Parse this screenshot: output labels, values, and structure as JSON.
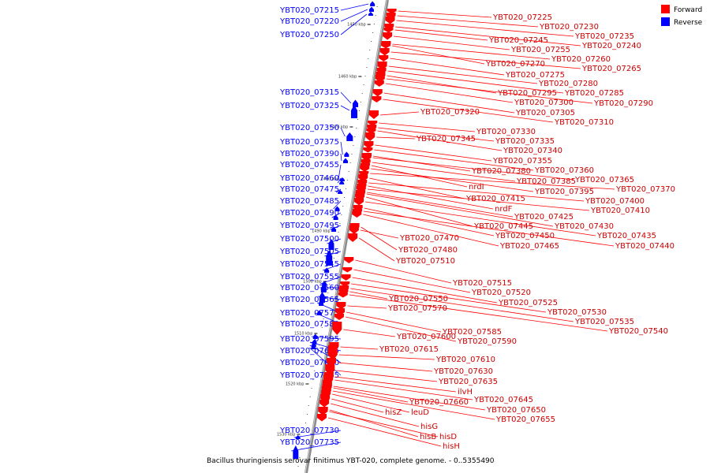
{
  "caption": "Bacillus thuringiensis serovar finitimus YBT-020, complete genome. - 0..5355490",
  "legend": {
    "items": [
      {
        "label": "Forward",
        "color": "#ff0000"
      },
      {
        "label": "Reverse",
        "color": "#0000ff"
      }
    ]
  },
  "scale_ticks": [
    {
      "label": "1450 kbp"
    },
    {
      "label": "1460 kbp"
    },
    {
      "label": "1470 kbp"
    },
    {
      "label": "1480 kbp"
    },
    {
      "label": "1490 kbp"
    },
    {
      "label": "1500 kbp"
    },
    {
      "label": "1510 kbp"
    },
    {
      "label": "1520 kbp"
    },
    {
      "label": "1530 kbp"
    }
  ],
  "reverse_genes": [
    "YBT020_07215",
    "YBT020_07220",
    "YBT020_07250",
    "YBT020_07315",
    "YBT020_07325",
    "YBT020_07350",
    "YBT020_07375",
    "YBT020_07390",
    "YBT020_07455",
    "YBT020_07460",
    "YBT020_07475",
    "YBT020_07485",
    "YBT020_07490",
    "YBT020_07495",
    "YBT020_07500",
    "YBT020_07505",
    "YBT020_07545",
    "YBT020_07555",
    "YBT020_07560",
    "YBT020_07565",
    "YBT020_07575",
    "YBT020_07580",
    "YBT020_07595",
    "YBT020_07605",
    "YBT020_07620",
    "YBT020_07625",
    "YBT020_07730",
    "YBT020_07735"
  ],
  "forward_genes": [
    "YBT020_07225",
    "YBT020_07230",
    "YBT020_07235",
    "YBT020_07245",
    "YBT020_07240",
    "YBT020_07255",
    "YBT020_07260",
    "YBT020_07270",
    "YBT020_07265",
    "YBT020_07275",
    "YBT020_07280",
    "YBT020_07295",
    "YBT020_07285",
    "YBT020_07300",
    "YBT020_07290",
    "YBT020_07320",
    "YBT020_07305",
    "YBT020_07310",
    "YBT020_07330",
    "YBT020_07345",
    "YBT020_07335",
    "YBT020_07340",
    "YBT020_07355",
    "YBT020_07380",
    "YBT020_07360",
    "YBT020_07385",
    "YBT020_07365",
    "nrdI",
    "YBT020_07395",
    "YBT020_07370",
    "YBT020_07415",
    "YBT020_07400",
    "nrdF",
    "YBT020_07410",
    "YBT020_07425",
    "YBT020_07445",
    "YBT020_07430",
    "YBT020_07450",
    "YBT020_07435",
    "YBT020_07470",
    "YBT020_07465",
    "YBT020_07440",
    "YBT020_07480",
    "YBT020_07510",
    "YBT020_07515",
    "YBT020_07520",
    "YBT020_07550",
    "YBT020_07525",
    "YBT020_07570",
    "YBT020_07530",
    "YBT020_07535",
    "YBT020_07540",
    "YBT020_07585",
    "YBT020_07600",
    "YBT020_07590",
    "YBT020_07615",
    "YBT020_07610",
    "YBT020_07630",
    "YBT020_07635",
    "ilvH",
    "YBT020_07660",
    "YBT020_07645",
    "YBT020_07650",
    "hisZ",
    "leuD",
    "YBT020_07655",
    "hisG",
    "hisB",
    "hisD",
    "hisH"
  ]
}
